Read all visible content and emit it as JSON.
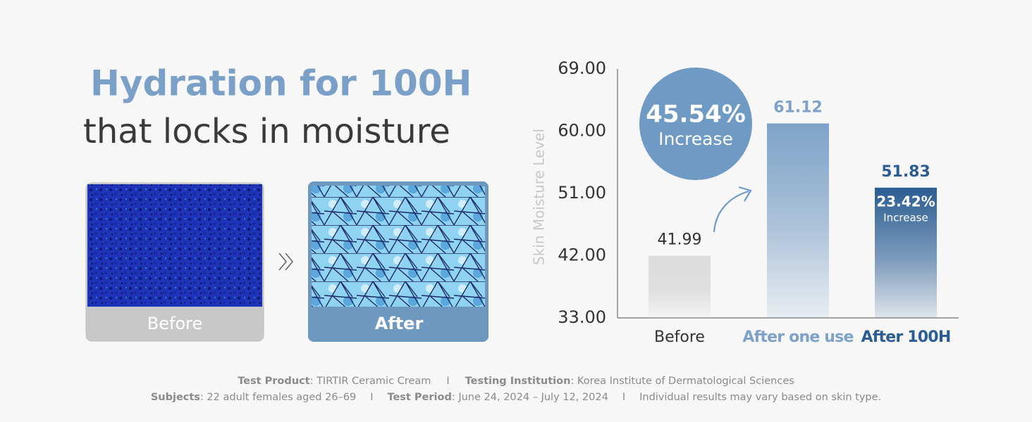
{
  "headline": {
    "line1": "Hydration for 100H",
    "line2": "that locks in moisture"
  },
  "images": {
    "before_label": "Before",
    "after_label": "After"
  },
  "chart_data": {
    "type": "bar",
    "y_label": "Skin Moisture Level",
    "categories": [
      "Before",
      "After one use",
      "After 100H"
    ],
    "values": [
      41.99,
      61.12,
      51.83
    ],
    "colors": [
      "#dcdcdc",
      "#7ea2c7",
      "#2b5d93"
    ],
    "ylim": [
      33,
      69
    ],
    "yticks": [
      {
        "value": 33,
        "label": "33.00"
      },
      {
        "value": 42,
        "label": "42.00"
      },
      {
        "value": 51,
        "label": "51.00"
      },
      {
        "value": 60,
        "label": "60.00"
      },
      {
        "value": 69,
        "label": "69.00"
      }
    ],
    "annotations": [
      {
        "value": 45.54,
        "label": "45.54%",
        "text": "Increase"
      },
      {
        "value": 23.42,
        "label": "23.42%",
        "text": "Increase"
      }
    ]
  },
  "footnote": {
    "separator": "I",
    "line1": [
      {
        "key": "Test Product",
        "text": ": TIRTIR Ceramic Cream"
      },
      {
        "key": "Testing Institution",
        "text": ": Korea Institute of Dermatological Sciences"
      }
    ],
    "line2": [
      {
        "key": "Subjects",
        "text": ": 22 adult females aged 26–69"
      },
      {
        "key": "Test Period",
        "text": ": June 24, 2024 – July 12, 2024"
      },
      {
        "text": "Individual results may vary based on skin type."
      }
    ]
  }
}
